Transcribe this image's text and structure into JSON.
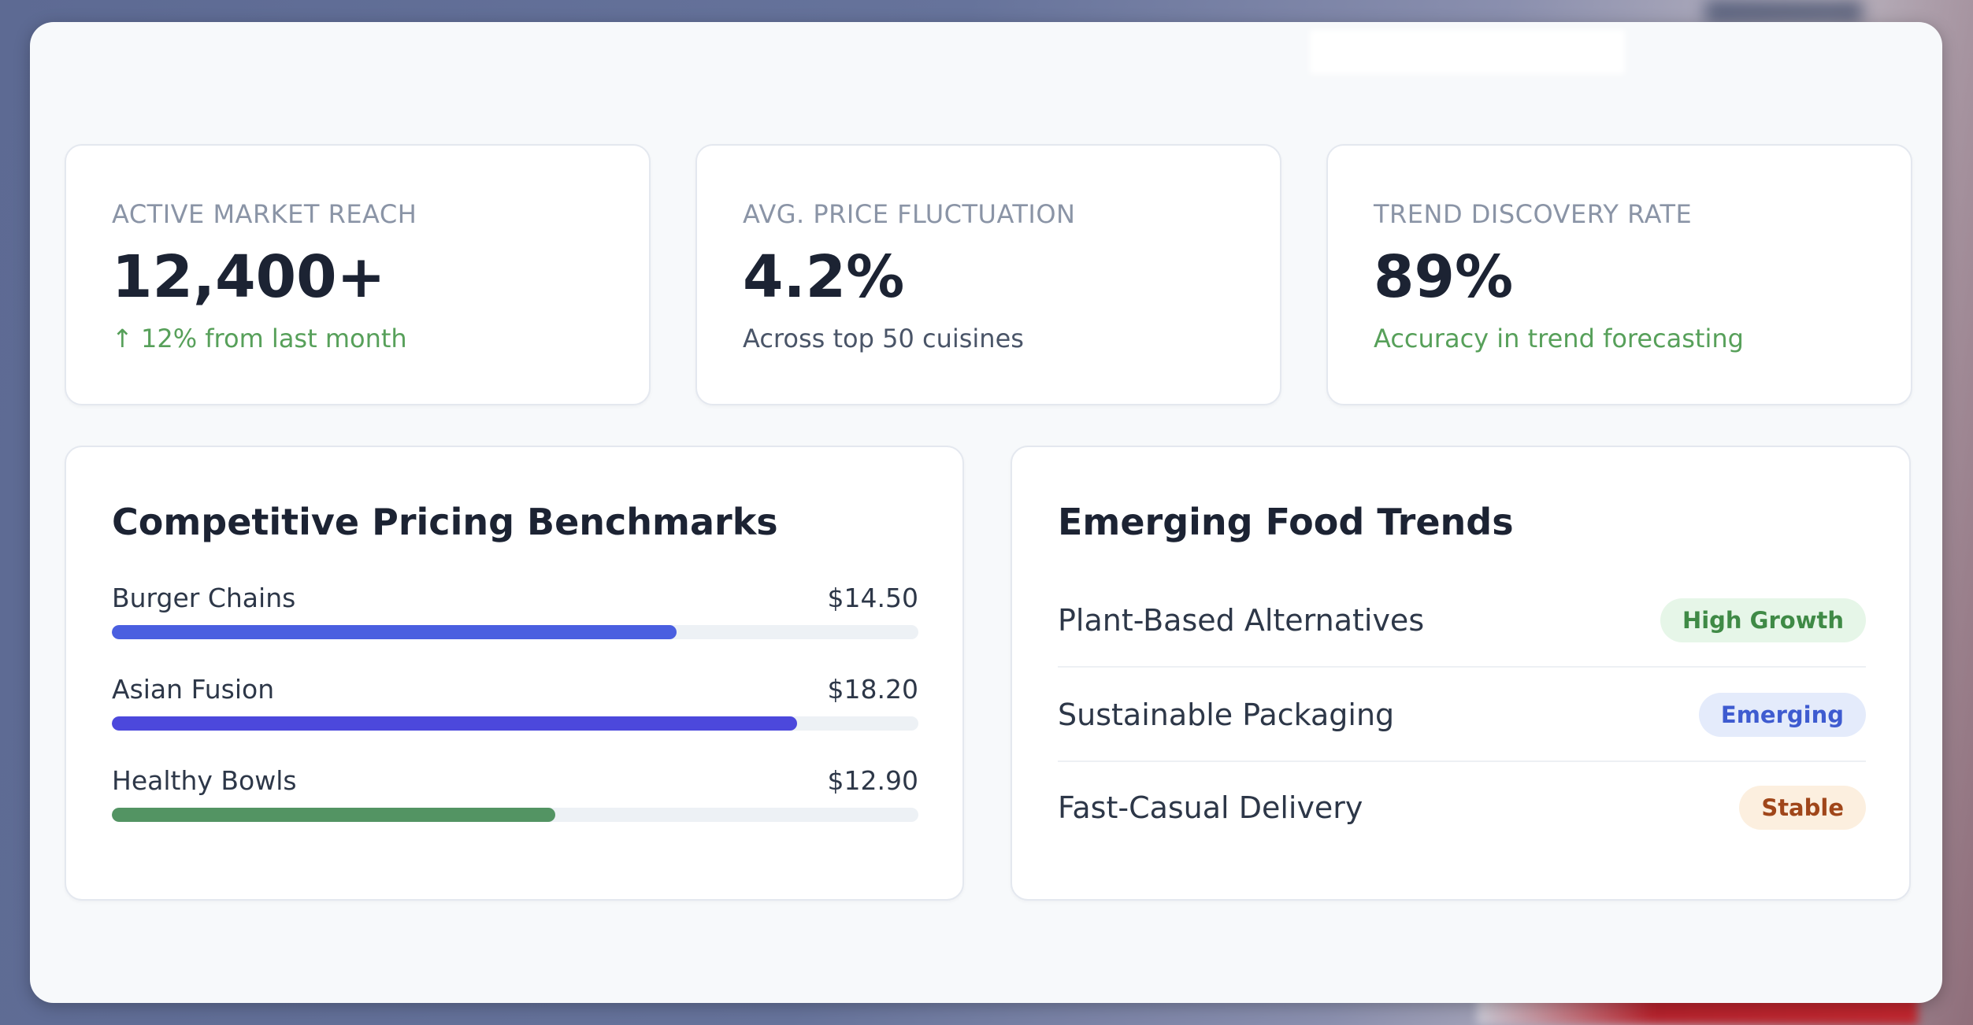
{
  "stats": [
    {
      "label": "ACTIVE MARKET REACH",
      "value": "12,400+",
      "sub": "↑ 12% from last month"
    },
    {
      "label": "AVG. PRICE FLUCTUATION",
      "value": "4.2%",
      "sub": "Across top 50 cuisines"
    },
    {
      "label": "TREND DISCOVERY RATE",
      "value": "89%",
      "sub": "Accuracy in trend forecasting"
    }
  ],
  "benchmarks": {
    "title": "Competitive Pricing Benchmarks",
    "items": [
      {
        "name": "Burger Chains",
        "price": "$14.50",
        "fill": 0.7,
        "color": "#4a5fe0"
      },
      {
        "name": "Asian Fusion",
        "price": "$18.20",
        "fill": 0.85,
        "color": "#4c48dc"
      },
      {
        "name": "Healthy Bowls",
        "price": "$12.90",
        "fill": 0.55,
        "color": "#539463"
      }
    ]
  },
  "trends": {
    "title": "Emerging Food Trends",
    "items": [
      {
        "name": "Plant-Based Alternatives",
        "badge": "High Growth",
        "badge_bg": "#e6f6e8",
        "badge_fg": "#3f8a46"
      },
      {
        "name": "Sustainable Packaging",
        "badge": "Emerging",
        "badge_bg": "#e4ebfb",
        "badge_fg": "#3e5bd0"
      },
      {
        "name": "Fast-Casual Delivery",
        "badge": "Stable",
        "badge_bg": "#fcefdf",
        "badge_fg": "#a0461a"
      }
    ]
  }
}
